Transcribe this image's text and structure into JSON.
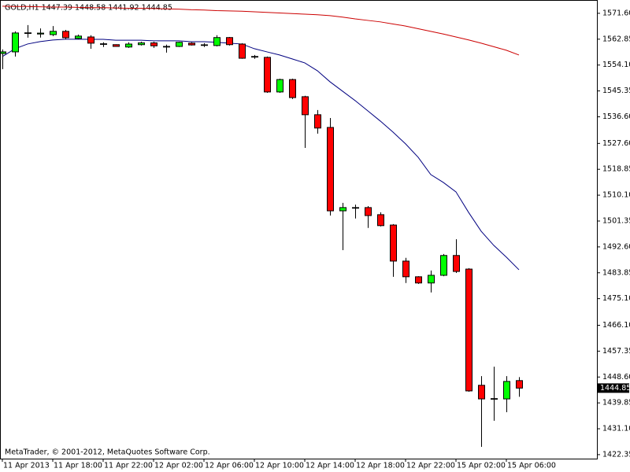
{
  "chart_data": {
    "type": "candlestick",
    "title": "GOLD,H1  1447.39 1448.58 1441.92 1444.85",
    "footer": "MetaTrader, © 2001-2012, MetaQuotes Software Corp.",
    "categories": [
      "11 Apr 2013",
      null,
      null,
      null,
      "11 Apr 18:00",
      null,
      null,
      null,
      "11 Apr 22:00",
      null,
      null,
      null,
      "12 Apr 02:00",
      null,
      null,
      null,
      "12 Apr 06:00",
      null,
      null,
      null,
      "12 Apr 10:00",
      null,
      null,
      null,
      "12 Apr 14:00",
      null,
      null,
      null,
      "12 Apr 18:00",
      null,
      null,
      null,
      "12 Apr 22:00",
      null,
      null,
      null,
      "15 Apr 02:00",
      null,
      null,
      null,
      "15 Apr 06:00",
      null
    ],
    "open": [
      1558.0,
      1558.56,
      1564.95,
      1564.6,
      1564.4,
      1565.5,
      1563.1,
      1563.6,
      1561.3,
      1561.0,
      1560.2,
      1561.0,
      1561.6,
      1560.4,
      1560.4,
      1561.5,
      1560.85,
      1560.7,
      1563.4,
      1561.2,
      1556.9,
      1556.7,
      1545.0,
      1549.2,
      1543.4,
      1537.3,
      1533.0,
      1504.8,
      1505.8,
      1505.9,
      1503.5,
      1500.0,
      1487.8,
      1482.5,
      1480.4,
      1483.0,
      1489.7,
      1485.1,
      1445.8,
      1441.2,
      1441.2,
      1447.39
    ],
    "high": [
      1559.36,
      1565.48,
      1567.61,
      1566.5,
      1567.3,
      1566.0,
      1564.4,
      1564.2,
      1561.8,
      1561.1,
      1561.8,
      1562.0,
      1562.0,
      1561.0,
      1562.0,
      1561.8,
      1561.5,
      1564.2,
      1563.6,
      1561.5,
      1557.5,
      1556.97,
      1549.5,
      1549.5,
      1543.7,
      1538.9,
      1536.2,
      1507.5,
      1506.9,
      1506.4,
      1504.3,
      1500.3,
      1488.9,
      1482.7,
      1484.6,
      1490.2,
      1495.2,
      1485.4,
      1448.9,
      1452.1,
      1448.9,
      1448.58
    ],
    "low": [
      1552.71,
      1556.97,
      1563.35,
      1563.4,
      1563.9,
      1562.8,
      1562.8,
      1559.6,
      1560.2,
      1560.3,
      1559.9,
      1560.7,
      1559.9,
      1558.3,
      1560.2,
      1560.7,
      1560.2,
      1560.4,
      1560.7,
      1556.2,
      1556.2,
      1544.7,
      1544.7,
      1542.6,
      1526.1,
      1530.9,
      1503.2,
      1491.5,
      1502.2,
      1499.0,
      1499.5,
      1482.5,
      1480.4,
      1480.1,
      1477.2,
      1482.7,
      1483.8,
      1443.6,
      1425.0,
      1433.8,
      1436.7,
      1441.92
    ],
    "close": [
      1558.56,
      1564.95,
      1565.0,
      1564.9,
      1565.5,
      1563.35,
      1563.9,
      1561.5,
      1561.2,
      1560.4,
      1561.2,
      1561.6,
      1560.6,
      1560.3,
      1561.8,
      1560.9,
      1560.95,
      1563.4,
      1561.0,
      1556.4,
      1557.0,
      1545.0,
      1549.2,
      1543.1,
      1537.3,
      1532.8,
      1504.8,
      1505.9,
      1505.9,
      1503.2,
      1499.8,
      1487.8,
      1482.5,
      1480.4,
      1483.0,
      1489.7,
      1484.3,
      1443.9,
      1441.2,
      1441.3,
      1447.1,
      1444.85
    ],
    "up_color": "#00ff00",
    "down_color": "#ff0000",
    "overlays": [
      {
        "color": "#000080",
        "values": [
          1556.97,
          1559.63,
          1561.22,
          1562.02,
          1562.55,
          1562.82,
          1562.82,
          1562.8,
          1562.8,
          1562.5,
          1562.5,
          1562.5,
          1562.3,
          1562.3,
          1562.3,
          1562.0,
          1562.0,
          1561.8,
          1561.5,
          1561.22,
          1559.63,
          1558.56,
          1557.5,
          1556.17,
          1554.84,
          1552.18,
          1548.45,
          1545.26,
          1542.07,
          1538.61,
          1535.15,
          1531.43,
          1527.44,
          1522.91,
          1517.06,
          1514.4,
          1511.21,
          1504.29,
          1497.91,
          1493.12,
          1489.13,
          1484.87
        ]
      },
      {
        "color": "#cc0000",
        "values": [
          1574.0,
          1573.9,
          1573.9,
          1573.8,
          1573.7,
          1573.7,
          1573.6,
          1573.5,
          1573.5,
          1573.4,
          1573.3,
          1573.3,
          1573.2,
          1573.1,
          1573.0,
          1572.8,
          1572.7,
          1572.5,
          1572.4,
          1572.3,
          1572.1,
          1571.9,
          1571.7,
          1571.5,
          1571.3,
          1571.1,
          1570.8,
          1570.3,
          1569.7,
          1569.2,
          1568.7,
          1568.0,
          1567.3,
          1566.4,
          1565.5,
          1564.6,
          1563.6,
          1562.6,
          1561.5,
          1560.3,
          1559.1,
          1557.5
        ]
      }
    ],
    "current_price": 1444.85,
    "ylim": [
      1421.0,
      1576.1
    ],
    "yticks": [
      {
        "value": 1571.6,
        "label": "1571.60"
      },
      1562.85,
      {
        "value": 1554.1,
        "label": "1554.10"
      },
      1545.35,
      {
        "value": 1536.6,
        "label": "1536.60"
      },
      {
        "value": 1527.6,
        "label": "1527.60"
      },
      1518.85,
      {
        "value": 1510.1,
        "label": "1510.10"
      },
      1501.35,
      {
        "value": 1492.6,
        "label": "1492.60"
      },
      1483.85,
      {
        "value": 1475.1,
        "label": "1475.10"
      },
      {
        "value": 1466.1,
        "label": "1466.10"
      },
      1457.35,
      {
        "value": 1448.6,
        "label": "1448.60"
      },
      1439.85,
      {
        "value": 1431.1,
        "label": "1431.10"
      },
      1422.35
    ]
  }
}
